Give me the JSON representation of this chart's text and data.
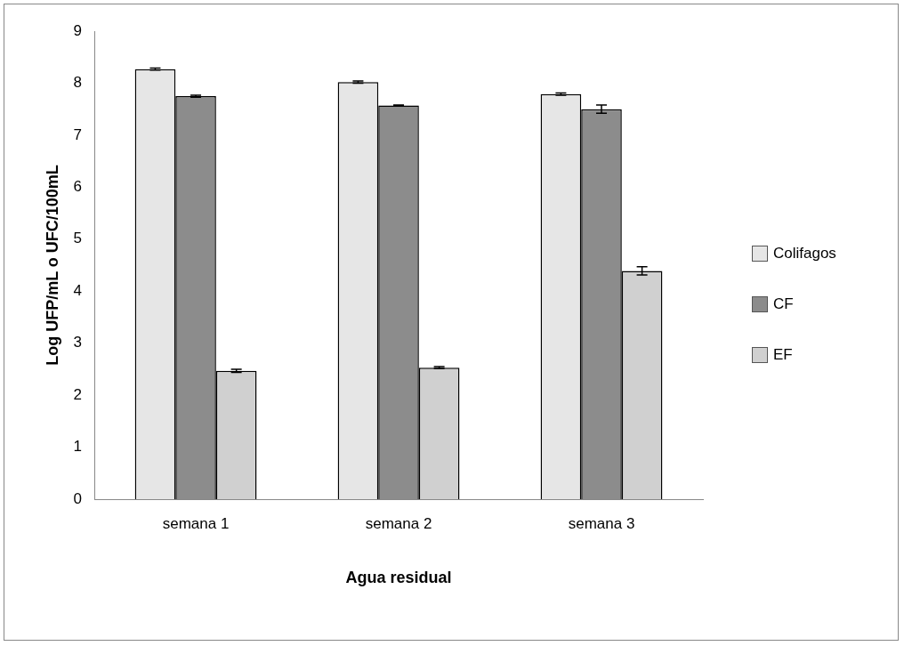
{
  "chart_data": {
    "type": "bar",
    "xlabel": "Agua residual",
    "ylabel": "Log UFP/mL o UFC/100mL",
    "categories": [
      "semana 1",
      "semana 2",
      "semana 3"
    ],
    "series": [
      {
        "name": "Colifagos",
        "color": "#e6e6e6",
        "values": [
          8.27,
          8.02,
          7.79
        ],
        "errors": [
          0.02,
          0.02,
          0.02
        ]
      },
      {
        "name": "CF",
        "color": "#8c8c8c",
        "values": [
          7.75,
          7.57,
          7.5
        ],
        "errors": [
          0.02,
          0.01,
          0.08
        ]
      },
      {
        "name": "EF",
        "color": "#d0d0d0",
        "values": [
          2.47,
          2.53,
          4.39
        ],
        "errors": [
          0.03,
          0.02,
          0.08
        ]
      }
    ],
    "ylim": [
      0,
      9
    ],
    "yticks": [
      0,
      1,
      2,
      3,
      4,
      5,
      6,
      7,
      8,
      9
    ],
    "grid": false,
    "legend": "right"
  }
}
